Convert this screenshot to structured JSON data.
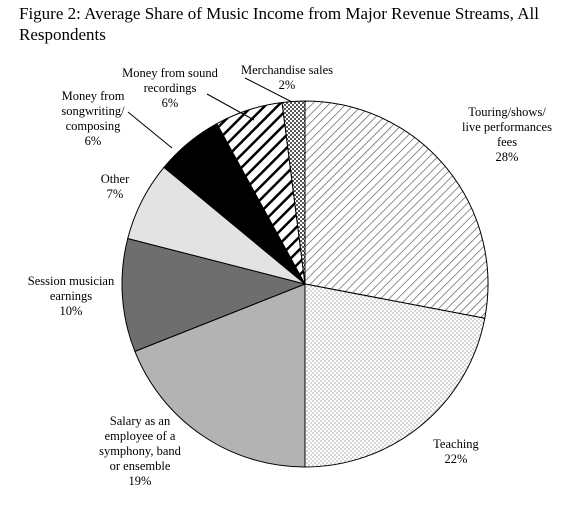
{
  "chart_data": {
    "type": "pie",
    "title": "Figure 2: Average Share of Music Income from Major Revenue Streams, All Respondents",
    "slices": [
      {
        "label_lines": [
          "Touring/shows/",
          "live performances",
          "fees"
        ],
        "value": 28,
        "value_label": "28%",
        "fill": "diag-light"
      },
      {
        "label_lines": [
          "Teaching"
        ],
        "value": 22,
        "value_label": "22%",
        "fill": "dots"
      },
      {
        "label_lines": [
          "Salary as an",
          "employee of a",
          "symphony, band",
          "or ensemble"
        ],
        "value": 19,
        "value_label": "19%",
        "fill": "#b3b3b3"
      },
      {
        "label_lines": [
          "Session musician",
          "earnings"
        ],
        "value": 10,
        "value_label": "10%",
        "fill": "#6e6e6e"
      },
      {
        "label_lines": [
          "Other"
        ],
        "value": 7,
        "value_label": "7%",
        "fill": "#e3e3e3"
      },
      {
        "label_lines": [
          "Money from",
          "songwriting/",
          "composing"
        ],
        "value": 6,
        "value_label": "6%",
        "fill": "#000000"
      },
      {
        "label_lines": [
          "Money from sound",
          "recordings"
        ],
        "value": 6,
        "value_label": "6%",
        "fill": "diag-bold"
      },
      {
        "label_lines": [
          "Merchandise sales"
        ],
        "value": 2,
        "value_label": "2%",
        "fill": "checker"
      }
    ]
  }
}
